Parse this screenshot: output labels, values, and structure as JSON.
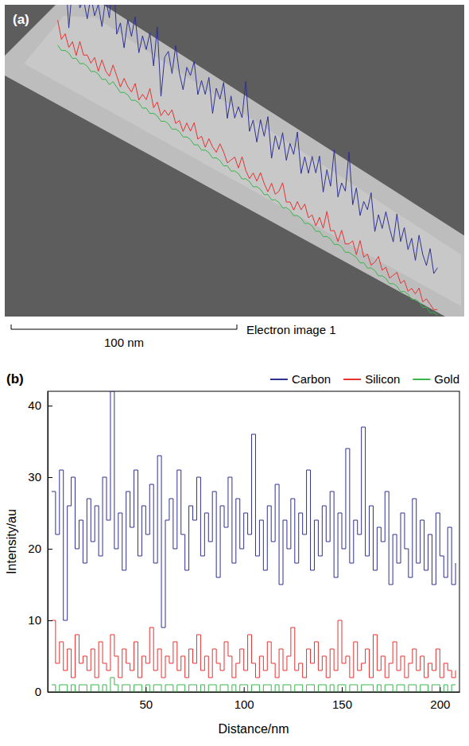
{
  "panel_a": {
    "label": "(a)",
    "scale_bar": "100 nm",
    "caption": "Electron image 1"
  },
  "chart_data": {
    "type": "line",
    "panel_label": "(b)",
    "x_label": "Distance/nm",
    "y_label": "Intensity/au",
    "x": [
      2,
      4,
      6,
      8,
      10,
      12,
      14,
      16,
      18,
      20,
      22,
      24,
      26,
      28,
      30,
      32,
      34,
      36,
      38,
      40,
      42,
      44,
      46,
      48,
      50,
      52,
      54,
      56,
      58,
      60,
      62,
      64,
      66,
      68,
      70,
      72,
      74,
      76,
      78,
      80,
      82,
      84,
      86,
      88,
      90,
      92,
      94,
      96,
      98,
      100,
      102,
      104,
      106,
      108,
      110,
      112,
      114,
      116,
      118,
      120,
      122,
      124,
      126,
      128,
      130,
      132,
      134,
      136,
      138,
      140,
      142,
      144,
      146,
      148,
      150,
      152,
      154,
      156,
      158,
      160,
      162,
      164,
      166,
      168,
      170,
      172,
      174,
      176,
      178,
      180,
      182,
      184,
      186,
      188,
      190,
      192,
      194,
      196,
      198,
      200,
      202,
      204,
      206,
      208
    ],
    "series": [
      {
        "name": "Carbon",
        "color": "#2e3192",
        "values": [
          28,
          22,
          31,
          10,
          26,
          30,
          20,
          24,
          18,
          27,
          21,
          26,
          19,
          30,
          24,
          42,
          20,
          25,
          17,
          28,
          23,
          31,
          19,
          26,
          22,
          29,
          18,
          33,
          9,
          24,
          27,
          20,
          31,
          22,
          17,
          26,
          24,
          30,
          19,
          25,
          21,
          28,
          16,
          26,
          23,
          30,
          18,
          27,
          20,
          25,
          22,
          36,
          19,
          24,
          17,
          26,
          21,
          29,
          15,
          24,
          20,
          27,
          18,
          25,
          22,
          31,
          17,
          24,
          19,
          26,
          21,
          28,
          16,
          25,
          20,
          34,
          18,
          24,
          22,
          37,
          19,
          26,
          17,
          23,
          21,
          28,
          15,
          22,
          18,
          25,
          20,
          16,
          27,
          18,
          24,
          17,
          22,
          15,
          25,
          19,
          16,
          23,
          15,
          18
        ]
      },
      {
        "name": "Silicon",
        "color": "#e8312f",
        "values": [
          10,
          4,
          7,
          3,
          6,
          2,
          8,
          4,
          5,
          3,
          6,
          2,
          7,
          4,
          3,
          8,
          5,
          2,
          6,
          4,
          3,
          7,
          2,
          5,
          4,
          9,
          3,
          6,
          2,
          5,
          4,
          7,
          3,
          5,
          2,
          6,
          4,
          8,
          3,
          5,
          2,
          6,
          4,
          3,
          7,
          5,
          2,
          4,
          6,
          3,
          8,
          4,
          2,
          5,
          3,
          7,
          4,
          2,
          6,
          3,
          5,
          9,
          3,
          4,
          2,
          6,
          4,
          7,
          3,
          5,
          2,
          6,
          3,
          10,
          4,
          5,
          2,
          7,
          3,
          4,
          6,
          2,
          8,
          3,
          5,
          2,
          4,
          7,
          3,
          5,
          2,
          4,
          6,
          3,
          5,
          2,
          4,
          3,
          6,
          2,
          4,
          3,
          2,
          3
        ]
      },
      {
        "name": "Gold",
        "color": "#39b54a",
        "values": [
          1,
          0,
          1,
          1,
          0,
          1,
          0,
          1,
          1,
          0,
          1,
          1,
          0,
          1,
          0,
          2,
          1,
          0,
          1,
          1,
          0,
          1,
          1,
          0,
          1,
          0,
          1,
          1,
          0,
          1,
          1,
          0,
          1,
          1,
          0,
          1,
          1,
          0,
          1,
          0,
          1,
          1,
          0,
          1,
          1,
          0,
          1,
          0,
          1,
          1,
          0,
          1,
          1,
          0,
          1,
          1,
          0,
          1,
          0,
          1,
          1,
          0,
          1,
          1,
          0,
          1,
          1,
          0,
          1,
          1,
          0,
          1,
          0,
          1,
          1,
          0,
          1,
          1,
          0,
          1,
          1,
          1,
          0,
          1,
          0,
          1,
          1,
          0,
          1,
          1,
          0,
          1,
          1,
          0,
          1,
          1,
          0,
          1,
          1,
          0,
          1,
          0,
          1,
          1
        ]
      }
    ],
    "xlim": [
      0,
      210
    ],
    "xticks": [
      50,
      100,
      150,
      200
    ],
    "ylim": [
      0,
      42
    ],
    "yticks": [
      0,
      10,
      20,
      30,
      40
    ],
    "line_style": "step",
    "legend": "top"
  }
}
